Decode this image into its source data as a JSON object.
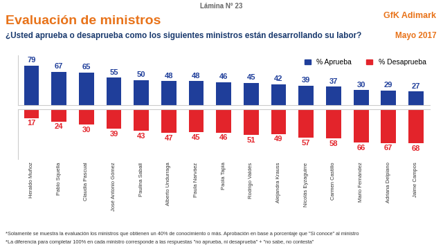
{
  "chart_data": {
    "type": "bar",
    "header": "Lámina N° 23",
    "logo": "GfK Adimark",
    "title": "Evaluación de ministros",
    "subtitle": "¿Usted aprueba o desaprueba como los siguientes ministros están desarrollando su labor?",
    "date": "Mayo 2017",
    "categories": [
      "Heraldo Muñoz",
      "Pablo Squella",
      "Claudia Pascual",
      "José Antonio Gómez",
      "Paulina Saball",
      "Alberto Undurraga",
      "Paula Narváez",
      "Paola Tapia",
      "Rodrigo Valdés",
      "Alejandra Krauss",
      "Nicolás Eyzaguirre",
      "Carmen Castillo",
      "Mario Fernández",
      "Adriana Delpiano",
      "Jaime Campos"
    ],
    "series": [
      {
        "name": "% Aprueba",
        "color": "#1f3e9a",
        "values": [
          79,
          67,
          65,
          55,
          50,
          48,
          48,
          46,
          45,
          42,
          39,
          37,
          30,
          29,
          27
        ]
      },
      {
        "name": "% Desaprueba",
        "color": "#e3242b",
        "values": [
          17,
          24,
          30,
          39,
          43,
          47,
          45,
          46,
          51,
          49,
          57,
          58,
          66,
          67,
          68
        ]
      }
    ],
    "ylim": [
      0,
      100
    ],
    "data_labels": true,
    "tick_labels": "x",
    "legend": "upper right",
    "notes": [
      "*Solamente se muestra la evaluación los ministros que obtienen un 40% de conocimiento o más. Aprobación en base a porcentaje que \"Si conoce\" al ministro",
      "*La diferencia para completar 100% en cada ministro corresponde a las respuestas \"no aprueba, ni desaprueba\" + \"no sabe, no contesta\""
    ]
  }
}
